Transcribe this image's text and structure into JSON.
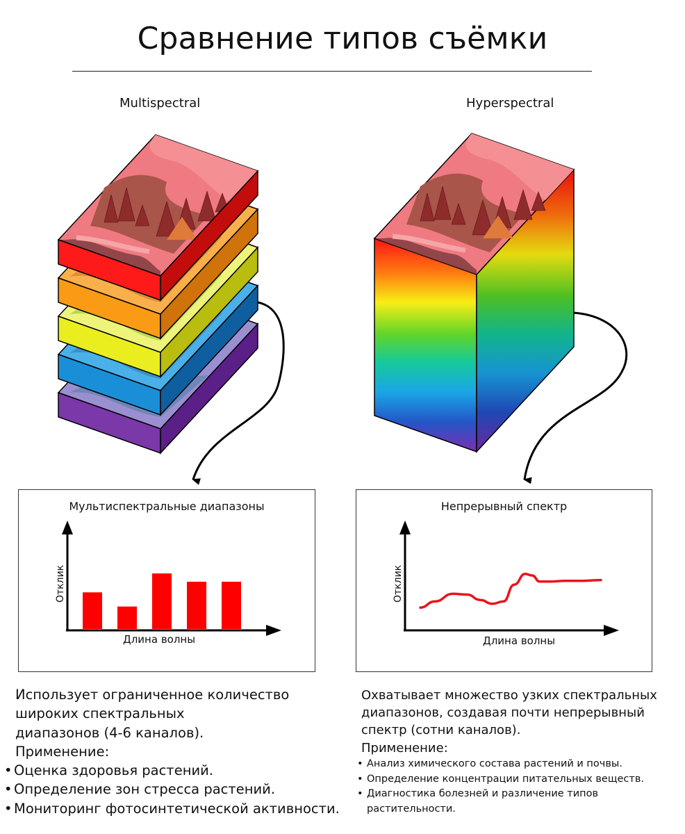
{
  "title": "Сравнение типов съёмки",
  "left": {
    "label": "Multispectral",
    "chart": {
      "title": "Мультиспектральные диапазоны",
      "xlabel": "Длина волны",
      "ylabel": "Отклик"
    },
    "description": [
      "Использует ограниченное количество",
      "широких спектральных",
      "диапазонов (4-6 каналов)."
    ],
    "applications_heading": "Применение:",
    "applications": [
      "Оценка здоровья растений.",
      "Определение зон стресса растений.",
      "Мониторинг фотосинтетической активности."
    ]
  },
  "right": {
    "label": "Hyperspectral",
    "chart": {
      "title": "Непрерывный спектр",
      "xlabel": "Длина волны",
      "ylabel": "Отклик"
    },
    "description": [
      "Охватывает множество узких спектральных",
      "диапазонов, создавая почти непрерывный",
      "спектр (сотни каналов)."
    ],
    "applications_heading": "Применение:",
    "applications": [
      "Анализ химического состава растений и почвы.",
      "Определение концентрации питательных веществ.",
      "Диагностика болезней и различение типов растительности."
    ]
  },
  "chart_data": [
    {
      "type": "bar",
      "title": "Мультиспектральные диапазоны",
      "xlabel": "Длина волны",
      "ylabel": "Отклик",
      "values": [
        0.62,
        0.38,
        0.94,
        0.8,
        0.8
      ],
      "color": "#ff0000"
    },
    {
      "type": "line",
      "title": "Непрерывный спектр",
      "xlabel": "Длина волны",
      "ylabel": "Отклик",
      "x": [
        0,
        0.08,
        0.18,
        0.26,
        0.33,
        0.4,
        0.46,
        0.52,
        0.58,
        0.62,
        0.66,
        0.72,
        0.8,
        0.9,
        1.0
      ],
      "y": [
        0.28,
        0.36,
        0.46,
        0.45,
        0.38,
        0.33,
        0.36,
        0.58,
        0.72,
        0.7,
        0.62,
        0.62,
        0.63,
        0.63,
        0.64
      ],
      "color": "#e8141c"
    }
  ],
  "colors": {
    "band_red": "#ff1a1a",
    "band_orange": "#f99b14",
    "band_yellow": "#eaee1e",
    "band_blue": "#1a8fd8",
    "band_violet": "#7a38a8",
    "scene_pink": "#f07a82",
    "scene_brown": "#a9554a"
  }
}
